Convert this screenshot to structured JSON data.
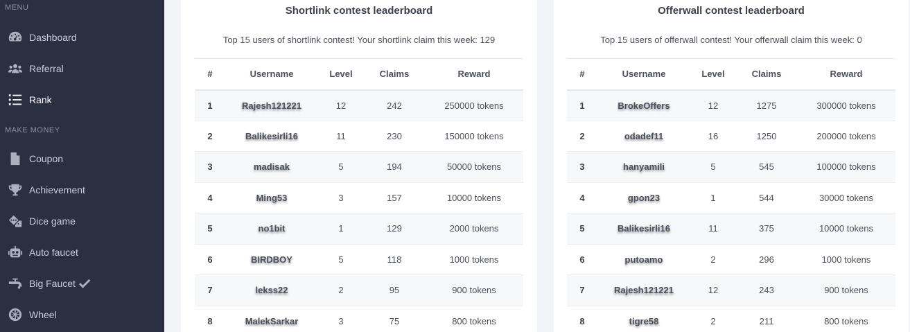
{
  "sidebar": {
    "menu_heading": "MENU",
    "money_heading": "MAKE MONEY",
    "menu_items": [
      {
        "label": "Dashboard",
        "icon": "dashboard-icon"
      },
      {
        "label": "Referral",
        "icon": "users-icon"
      },
      {
        "label": "Rank",
        "icon": "list-icon",
        "active": true
      }
    ],
    "money_items": [
      {
        "label": "Coupon",
        "icon": "file-icon"
      },
      {
        "label": "Achievement",
        "icon": "trophy-icon"
      },
      {
        "label": "Dice game",
        "icon": "dice-icon"
      },
      {
        "label": "Auto faucet",
        "icon": "robot-icon"
      },
      {
        "label": "Big Faucet",
        "icon": "faucet-icon"
      },
      {
        "label": "Wheel",
        "icon": "wheel-icon"
      }
    ]
  },
  "shortlink": {
    "title": "Shortlink contest leaderboard",
    "subtitle": "Top 15 users of shortlink contest! Your shortlink claim this week: 129",
    "headers": {
      "rank": "#",
      "username": "Username",
      "level": "Level",
      "claims": "Claims",
      "reward": "Reward"
    },
    "rows": [
      {
        "rank": "1",
        "username": "Rajesh121221",
        "level": "12",
        "claims": "242",
        "reward": "250000 tokens"
      },
      {
        "rank": "2",
        "username": "Balikesirli16",
        "level": "11",
        "claims": "230",
        "reward": "150000 tokens"
      },
      {
        "rank": "3",
        "username": "madisak",
        "level": "5",
        "claims": "194",
        "reward": "50000 tokens"
      },
      {
        "rank": "4",
        "username": "Ming53",
        "level": "3",
        "claims": "157",
        "reward": "10000 tokens"
      },
      {
        "rank": "5",
        "username": "no1bit",
        "level": "1",
        "claims": "129",
        "reward": "2000 tokens"
      },
      {
        "rank": "6",
        "username": "BIRDBOY",
        "level": "5",
        "claims": "118",
        "reward": "1000 tokens"
      },
      {
        "rank": "7",
        "username": "lekss22",
        "level": "2",
        "claims": "95",
        "reward": "900 tokens"
      },
      {
        "rank": "8",
        "username": "MalekSarkar",
        "level": "3",
        "claims": "75",
        "reward": "800 tokens"
      }
    ]
  },
  "offerwall": {
    "title": "Offerwall contest leaderboard",
    "subtitle": "Top 15 users of offerwall contest! Your offerwall claim this week: 0",
    "headers": {
      "rank": "#",
      "username": "Username",
      "level": "Level",
      "claims": "Claims",
      "reward": "Reward"
    },
    "rows": [
      {
        "rank": "1",
        "username": "BrokeOffers",
        "level": "12",
        "claims": "1275",
        "reward": "300000 tokens"
      },
      {
        "rank": "2",
        "username": "odadef11",
        "level": "16",
        "claims": "1250",
        "reward": "200000 tokens"
      },
      {
        "rank": "3",
        "username": "hanyamili",
        "level": "5",
        "claims": "545",
        "reward": "100000 tokens"
      },
      {
        "rank": "4",
        "username": "gpon23",
        "level": "1",
        "claims": "544",
        "reward": "30000 tokens"
      },
      {
        "rank": "5",
        "username": "Balikesirli16",
        "level": "11",
        "claims": "375",
        "reward": "10000 tokens"
      },
      {
        "rank": "6",
        "username": "putoamo",
        "level": "2",
        "claims": "296",
        "reward": "1000 tokens"
      },
      {
        "rank": "7",
        "username": "Rajesh121221",
        "level": "12",
        "claims": "243",
        "reward": "900 tokens"
      },
      {
        "rank": "8",
        "username": "tigre58",
        "level": "2",
        "claims": "211",
        "reward": "800 tokens"
      }
    ]
  }
}
